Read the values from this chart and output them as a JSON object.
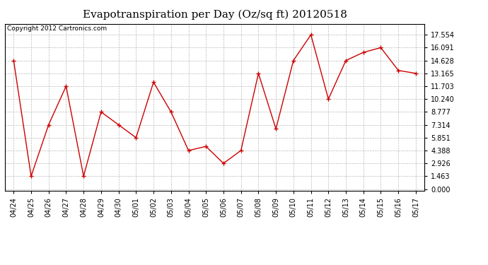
{
  "title": "Evapotranspiration per Day (Oz/sq ft) 20120518",
  "copyright": "Copyright 2012 Cartronics.com",
  "x_labels": [
    "04/24",
    "04/25",
    "04/26",
    "04/27",
    "04/28",
    "04/29",
    "04/30",
    "05/01",
    "05/02",
    "05/03",
    "05/04",
    "05/05",
    "05/06",
    "05/07",
    "05/08",
    "05/09",
    "05/10",
    "05/11",
    "05/12",
    "05/13",
    "05/14",
    "05/15",
    "05/16",
    "05/17"
  ],
  "y_values": [
    14.628,
    1.463,
    7.314,
    11.703,
    1.463,
    8.777,
    7.314,
    5.851,
    12.165,
    8.777,
    4.388,
    4.85,
    2.926,
    4.388,
    13.165,
    6.851,
    14.628,
    17.554,
    10.24,
    14.628,
    15.554,
    16.091,
    13.5,
    13.165
  ],
  "y_ticks": [
    0.0,
    1.463,
    2.926,
    4.388,
    5.851,
    7.314,
    8.777,
    10.24,
    11.703,
    13.165,
    14.628,
    16.091,
    17.554
  ],
  "line_color": "#cc0000",
  "marker": "+",
  "marker_size": 5,
  "bg_color": "#ffffff",
  "grid_color": "#bbbbbb",
  "title_fontsize": 11,
  "copyright_fontsize": 6.5,
  "tick_fontsize": 7,
  "ylim": [
    -0.2,
    18.8
  ]
}
